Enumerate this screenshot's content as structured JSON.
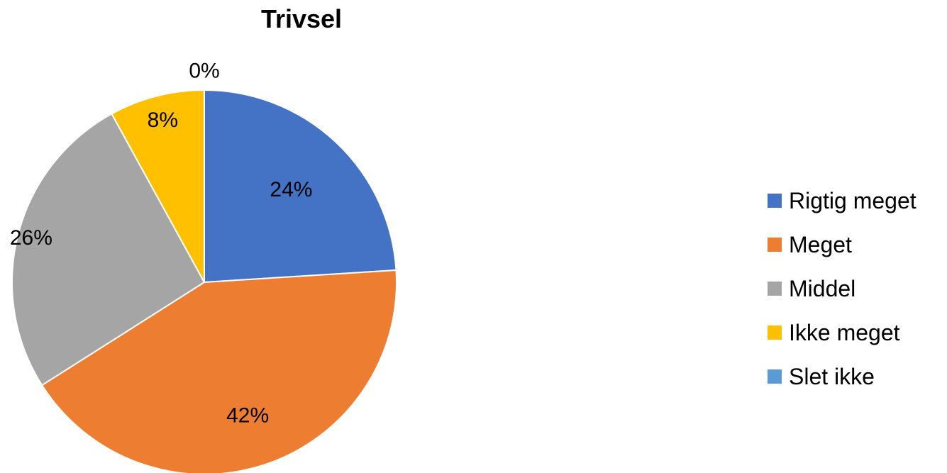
{
  "chart_data": {
    "type": "pie",
    "title": "Trivsel",
    "categories": [
      "Rigtig meget",
      "Meget",
      "Middel",
      "Ikke meget",
      "Slet ikke"
    ],
    "values": [
      24,
      42,
      26,
      8,
      0
    ],
    "labels": [
      "24%",
      "42%",
      "26%",
      "8%",
      "0%"
    ],
    "colors": [
      "#4472C4",
      "#ED7D31",
      "#A5A5A5",
      "#FFC000",
      "#5B9BD5"
    ],
    "legend_position": "right"
  }
}
